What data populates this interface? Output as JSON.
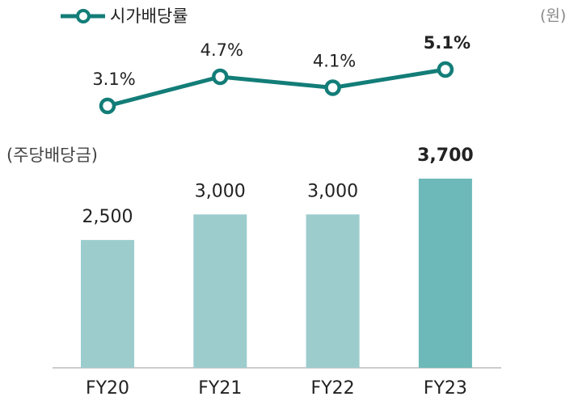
{
  "chart_data": [
    {
      "type": "line",
      "series": [
        {
          "name": "시가배당률",
          "color": "#137d78",
          "values": [
            3.1,
            4.7,
            4.1,
            5.1
          ],
          "value_labels": [
            "3.1%",
            "4.7%",
            "4.1%",
            "5.1%"
          ]
        }
      ],
      "ylim": [
        2,
        6
      ]
    },
    {
      "type": "bar",
      "y_label": "(주당배당금)",
      "unit_label": "(원)",
      "categories": [
        "FY20",
        "FY21",
        "FY22",
        "FY23"
      ],
      "values": [
        2500,
        3000,
        3000,
        3700
      ],
      "value_labels": [
        "2,500",
        "3,000",
        "3,000",
        "3,700"
      ],
      "colors": [
        "#9dcccd",
        "#9dcccd",
        "#9dcccd",
        "#6db8b8"
      ],
      "ylim": [
        0,
        4000
      ]
    }
  ]
}
